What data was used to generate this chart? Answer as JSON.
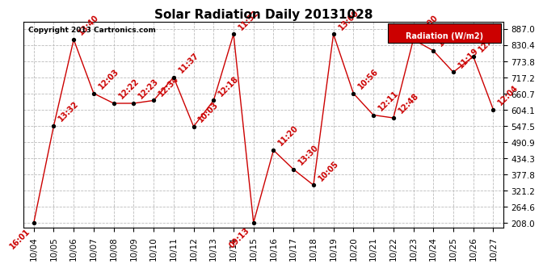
{
  "title": "Solar Radiation Daily 20131028",
  "copyright_text": "Copyright 2013 Cartronics.com",
  "legend_label": "Radiation (W/m2)",
  "yticks": [
    208.0,
    264.6,
    321.2,
    377.8,
    434.3,
    490.9,
    547.5,
    604.1,
    660.7,
    717.2,
    773.8,
    830.4,
    887.0
  ],
  "dates": [
    "10/04",
    "10/05",
    "10/06",
    "10/07",
    "10/08",
    "10/09",
    "10/10",
    "10/11",
    "10/12",
    "10/13",
    "10/14",
    "10/15",
    "10/16",
    "10/17",
    "10/18",
    "10/19",
    "10/20",
    "10/21",
    "10/22",
    "10/23",
    "10/24",
    "10/25",
    "10/26",
    "10/27"
  ],
  "values": [
    208.0,
    547.5,
    849.0,
    660.7,
    626.0,
    626.0,
    636.0,
    717.2,
    545.0,
    636.0,
    868.0,
    208.5,
    462.0,
    395.0,
    340.0,
    868.0,
    660.7,
    585.0,
    575.0,
    849.0,
    810.0,
    735.0,
    790.0,
    604.1
  ],
  "time_labels": [
    "16:01",
    "13:32",
    "13:40",
    "12:03",
    "12:22",
    "12:23",
    "12:34",
    "11:37",
    "10:03",
    "12:18",
    "11:52",
    "09:13",
    "11:20",
    "13:30",
    "10:05",
    "13:00",
    "10:56",
    "12:11",
    "12:48",
    "12:00",
    "11:54",
    "11:19",
    "12:42",
    "12:04"
  ],
  "line_color": "#cc0000",
  "marker_color": "#000000",
  "bg_color": "#ffffff",
  "grid_color": "#bbbbbb",
  "legend_bg": "#cc0000",
  "legend_text_color": "#ffffff",
  "title_fontsize": 11,
  "label_fontsize": 7,
  "tick_fontsize": 7.5
}
